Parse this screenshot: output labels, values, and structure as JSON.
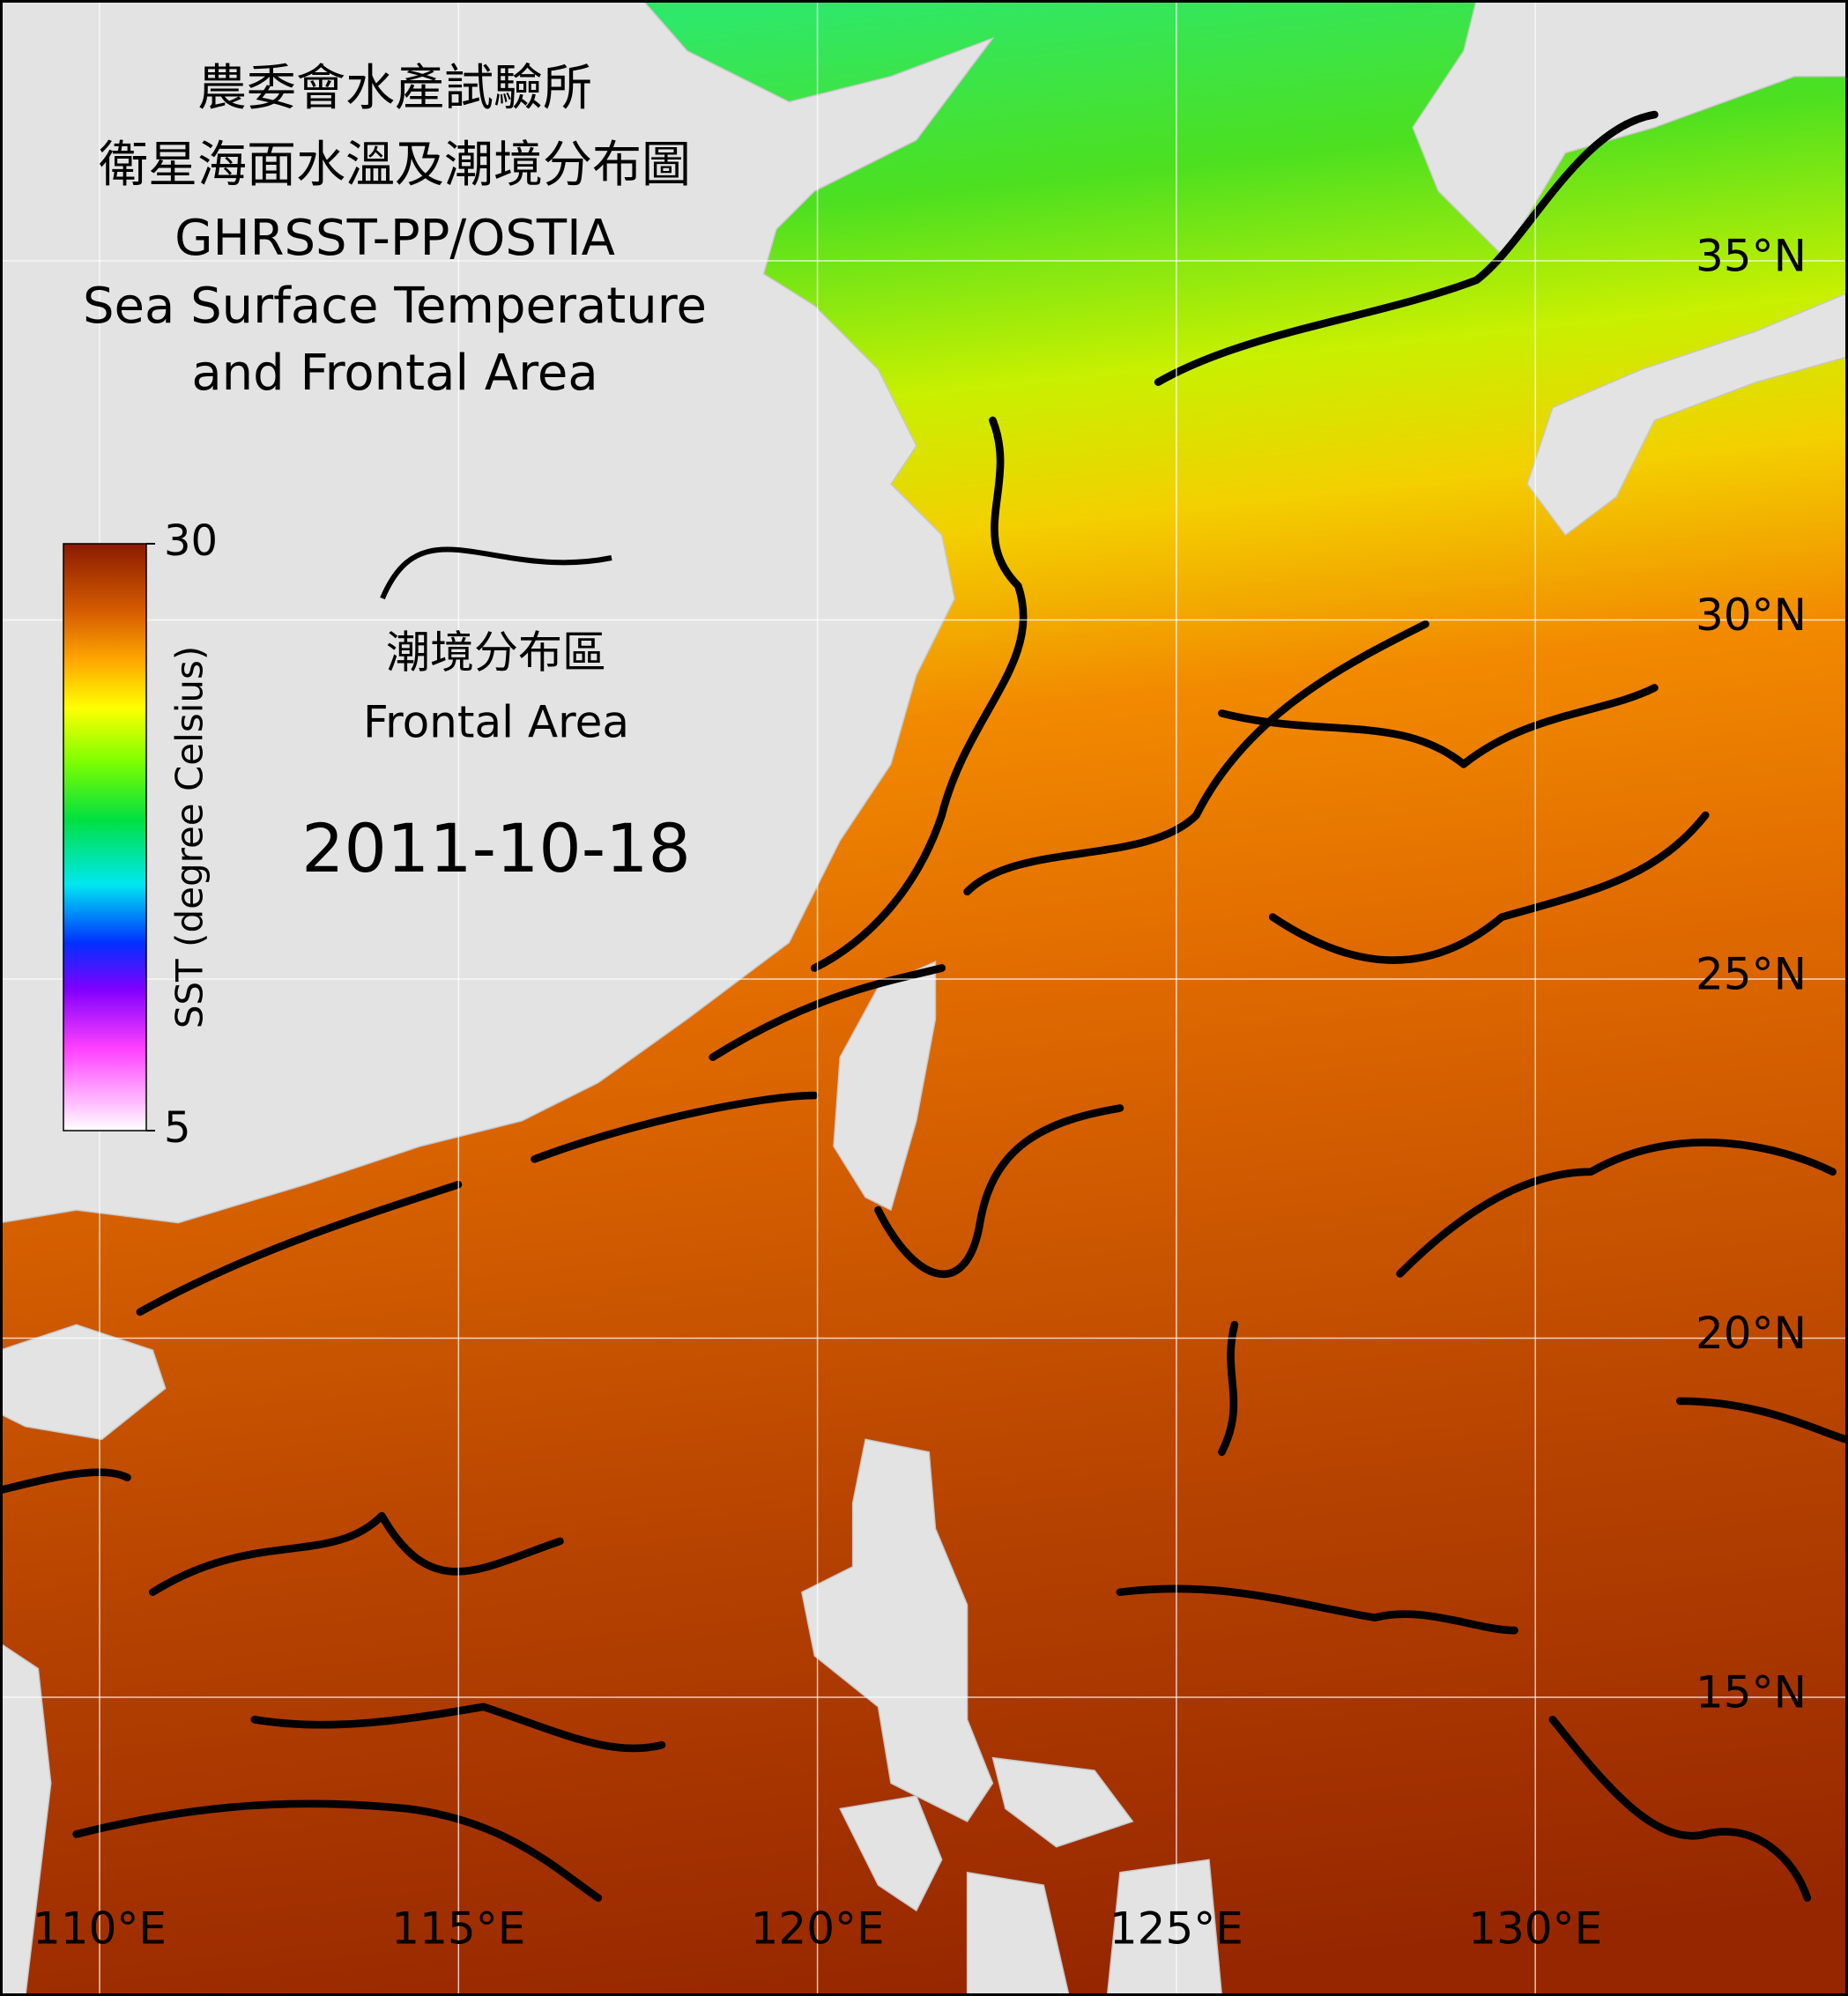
{
  "header": {
    "title_lines": [
      "農委會水產試驗所",
      "衛星海面水溫及潮境分布圖",
      "GHRSST-PP/OSTIA",
      "Sea Surface Temperature",
      "and Frontal Area"
    ]
  },
  "legend": {
    "frontal_area": [
      "潮境分布區",
      "Frontal Area"
    ]
  },
  "colorbar": {
    "label": "SST (degree Celsius)",
    "range": [
      5,
      30
    ],
    "ticks": [
      30,
      5
    ]
  },
  "date": "2011-10-18",
  "grid": {
    "lat": [
      {
        "value": 35,
        "label": "35°N"
      },
      {
        "value": 30,
        "label": "30°N"
      },
      {
        "value": 25,
        "label": "25°N"
      },
      {
        "value": 20,
        "label": "20°N"
      },
      {
        "value": 15,
        "label": "15°N"
      }
    ],
    "lon": [
      {
        "value": 110,
        "label": "110°E"
      },
      {
        "value": 115,
        "label": "115°E"
      },
      {
        "value": 120,
        "label": "120°E"
      },
      {
        "value": 125,
        "label": "125°E"
      },
      {
        "value": 130,
        "label": "130°E"
      }
    ]
  }
}
